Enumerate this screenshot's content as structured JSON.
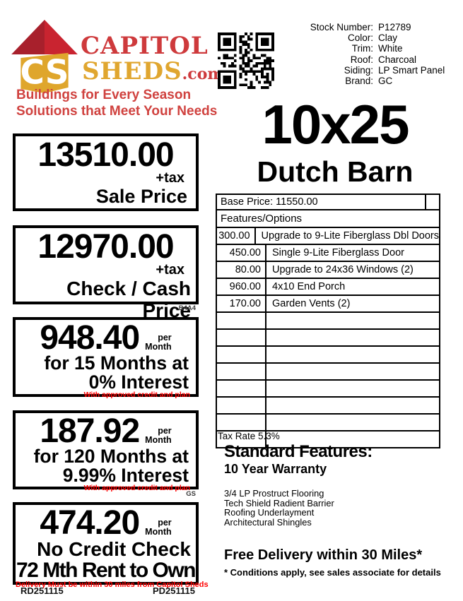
{
  "colors": {
    "brand_red": "#CE3A3C",
    "brand_gold": "#E0A62F",
    "roof_dark": "#A8202C",
    "roof_light": "#C92430",
    "alert_red": "#FF0000"
  },
  "icons": {
    "logo": "capitol-sheds-logo",
    "qr": "qr-code"
  },
  "logo": {
    "brand_line1": "CAPITOL",
    "brand_line2": "SHEDS",
    "brand_suffix": ".com",
    "tagline_line1": "Buildings for Every Season",
    "tagline_line2": "Solutions that Meet Your Needs"
  },
  "stock_info": {
    "rows": [
      {
        "label": "Stock Number:",
        "value": "P12789"
      },
      {
        "label": "Color:",
        "value": "Clay"
      },
      {
        "label": "Trim:",
        "value": "White"
      },
      {
        "label": "Roof:",
        "value": "Charcoal"
      },
      {
        "label": "Siding:",
        "value": "LP Smart Panel"
      },
      {
        "label": "Brand:",
        "value": "GC"
      }
    ]
  },
  "product": {
    "size_title": "10x25",
    "model_title": "Dutch Barn"
  },
  "pricing_table": {
    "base_price_label": "Base Price: 11550.00",
    "header": "Features/Options",
    "rows": [
      {
        "price": "300.00",
        "desc": "Upgrade to 9-Lite Fiberglass Dbl Doors"
      },
      {
        "price": "450.00",
        "desc": "Single 9-Lite Fiberglass Door"
      },
      {
        "price": "80.00",
        "desc": "Upgrade to 24x36 Windows (2)"
      },
      {
        "price": "960.00",
        "desc": "4x10 End Porch"
      },
      {
        "price": "170.00",
        "desc": "Garden Vents (2)"
      },
      {
        "price": "",
        "desc": ""
      },
      {
        "price": "",
        "desc": ""
      },
      {
        "price": "",
        "desc": ""
      },
      {
        "price": "",
        "desc": ""
      },
      {
        "price": "",
        "desc": ""
      },
      {
        "price": "",
        "desc": ""
      },
      {
        "price": "",
        "desc": ""
      },
      {
        "price": "",
        "desc": ""
      }
    ],
    "tax_rate": "Tax Rate 5.3%"
  },
  "price_boxes": [
    {
      "amount": "13510.00",
      "tax_note": "+tax",
      "label": "Sale Price"
    },
    {
      "amount": "12970.00",
      "tax_note": "+tax",
      "label": "Check / Cash Price"
    },
    {
      "amount": "948.40",
      "per": "per",
      "per_unit": "Month",
      "line1": "for 15 Months at",
      "line2": "0% Interest",
      "note": "With approved credit and plan"
    },
    {
      "amount": "187.92",
      "per": "per",
      "per_unit": "Month",
      "line1": "for 120 Months at",
      "line2": "9.99% Interest",
      "note": "With approved credit and plan"
    },
    {
      "amount": "474.20",
      "per": "per",
      "per_unit": "Month",
      "line1": "No Credit Check",
      "line2": "72 Mth Rent to Own",
      "note": "Delivery Must be within 30 miles from Capitol Sheds"
    }
  ],
  "codes": {
    "box2_code": "B4A4",
    "box4_code": "GS",
    "footer_left": "RD251115",
    "footer_right": "PD251115"
  },
  "standard_features": {
    "title": "Standard Features:",
    "warranty": "10 Year Warranty",
    "items": [
      "3/4 LP Prostruct Flooring",
      "Tech Shield Radient Barrier",
      "Roofing Underlayment",
      "Architectural Shingles"
    ],
    "delivery": "Free Delivery within 30 Miles*",
    "conditions": "* Conditions apply, see sales associate for details"
  }
}
